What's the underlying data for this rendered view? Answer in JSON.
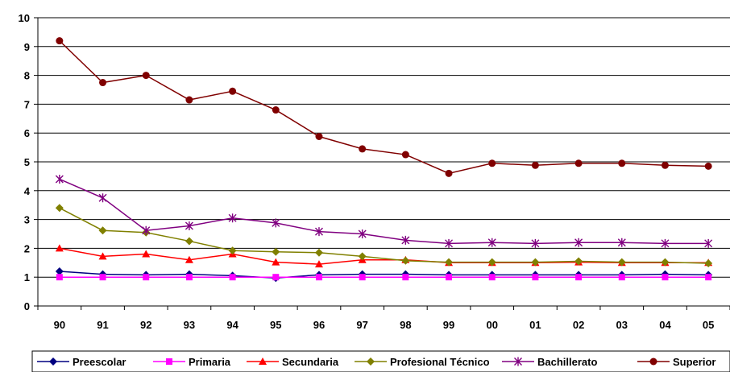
{
  "chart_data": {
    "type": "line",
    "categories": [
      "90",
      "91",
      "92",
      "93",
      "94",
      "95",
      "96",
      "97",
      "98",
      "99",
      "00",
      "01",
      "02",
      "03",
      "04",
      "05"
    ],
    "ylim": [
      0,
      10
    ],
    "yticks": [
      "0",
      "1",
      "2",
      "3",
      "4",
      "5",
      "6",
      "7",
      "8",
      "9",
      "10"
    ],
    "grid": "horizontal",
    "legend_position": "bottom",
    "series": [
      {
        "name": "Preescolar",
        "color": "#000080",
        "marker": "diamond",
        "values": [
          1.2,
          1.1,
          1.08,
          1.1,
          1.05,
          0.97,
          1.08,
          1.1,
          1.1,
          1.08,
          1.08,
          1.08,
          1.08,
          1.08,
          1.1,
          1.08
        ]
      },
      {
        "name": "Primaria",
        "color": "#FF00FF",
        "marker": "square",
        "values": [
          1.0,
          1.0,
          1.0,
          1.0,
          1.0,
          1.0,
          1.0,
          1.0,
          1.0,
          1.0,
          1.0,
          1.0,
          1.0,
          1.0,
          1.0,
          1.0
        ]
      },
      {
        "name": "Secundaria",
        "color": "#FF0000",
        "marker": "triangle",
        "values": [
          2.0,
          1.72,
          1.8,
          1.6,
          1.8,
          1.52,
          1.45,
          1.6,
          1.6,
          1.5,
          1.5,
          1.5,
          1.52,
          1.5,
          1.5,
          1.5
        ]
      },
      {
        "name": "Profesional Técnico",
        "color": "#808000",
        "marker": "diamond",
        "values": [
          3.4,
          2.62,
          2.55,
          2.25,
          1.92,
          1.88,
          1.85,
          1.72,
          1.57,
          1.52,
          1.52,
          1.52,
          1.55,
          1.52,
          1.52,
          1.48
        ]
      },
      {
        "name": "Bachillerato",
        "color": "#800080",
        "marker": "asterisk",
        "values": [
          4.4,
          3.75,
          2.62,
          2.78,
          3.05,
          2.88,
          2.58,
          2.5,
          2.28,
          2.17,
          2.2,
          2.17,
          2.2,
          2.2,
          2.17,
          2.17
        ]
      },
      {
        "name": "Superior",
        "color": "#800000",
        "marker": "circle",
        "values": [
          9.2,
          7.75,
          8.0,
          7.15,
          7.45,
          6.8,
          5.88,
          5.45,
          5.25,
          4.6,
          4.95,
          4.88,
          4.95,
          4.95,
          4.88,
          4.85
        ]
      }
    ]
  }
}
